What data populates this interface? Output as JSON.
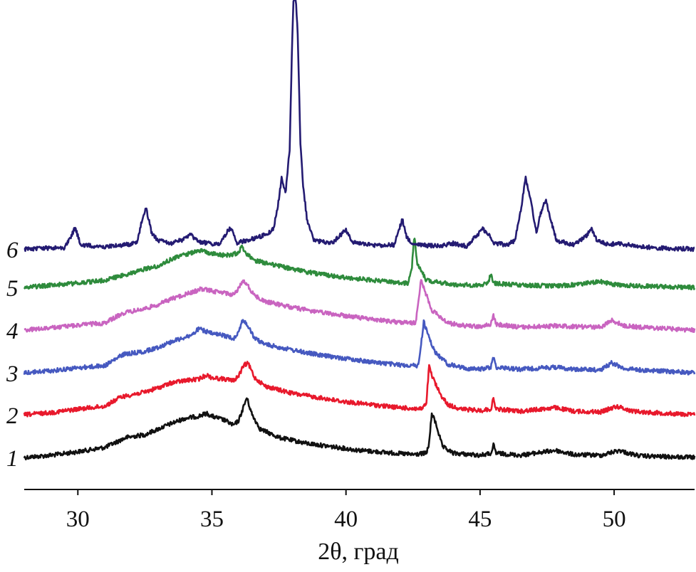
{
  "chart_data": {
    "type": "line",
    "title": "",
    "xlabel": "2θ, град",
    "ylabel": "",
    "xlim": [
      28,
      53
    ],
    "xticks": [
      30,
      35,
      40,
      45,
      50
    ],
    "xtick_labels": [
      "30",
      "35",
      "40",
      "45",
      "50"
    ],
    "grid": false,
    "series": [
      {
        "label": "1",
        "color": "#111111",
        "baseline": 2,
        "points": [
          [
            28,
            0
          ],
          [
            29,
            3
          ],
          [
            30,
            8
          ],
          [
            31,
            14
          ],
          [
            31.8,
            28
          ],
          [
            32.5,
            32
          ],
          [
            33,
            40
          ],
          [
            33.5,
            48
          ],
          [
            34,
            55
          ],
          [
            34.5,
            58
          ],
          [
            34.8,
            62
          ],
          [
            35,
            58
          ],
          [
            35.5,
            52
          ],
          [
            35.8,
            45
          ],
          [
            36,
            52
          ],
          [
            36.15,
            68
          ],
          [
            36.3,
            84
          ],
          [
            36.5,
            60
          ],
          [
            36.8,
            40
          ],
          [
            37.5,
            28
          ],
          [
            38.5,
            20
          ],
          [
            39.5,
            15
          ],
          [
            40.5,
            10
          ],
          [
            41.5,
            7
          ],
          [
            42.5,
            4
          ],
          [
            43,
            6
          ],
          [
            43.1,
            20
          ],
          [
            43.2,
            62
          ],
          [
            43.35,
            48
          ],
          [
            43.6,
            15
          ],
          [
            44,
            6
          ],
          [
            45,
            3
          ],
          [
            45.45,
            6
          ],
          [
            45.5,
            18
          ],
          [
            45.6,
            6
          ],
          [
            46.5,
            3
          ],
          [
            47.8,
            10
          ],
          [
            48.5,
            4
          ],
          [
            49.5,
            3
          ],
          [
            50.2,
            10
          ],
          [
            50.5,
            6
          ],
          [
            51,
            2
          ],
          [
            52,
            1
          ],
          [
            53,
            0
          ]
        ]
      },
      {
        "label": "2",
        "color": "#e8192c",
        "baseline": 2,
        "points": [
          [
            28,
            0
          ],
          [
            29,
            3
          ],
          [
            30,
            8
          ],
          [
            31,
            12
          ],
          [
            31.6,
            25
          ],
          [
            32.5,
            32
          ],
          [
            33,
            38
          ],
          [
            33.5,
            45
          ],
          [
            34,
            48
          ],
          [
            34.5,
            50
          ],
          [
            34.8,
            56
          ],
          [
            35,
            52
          ],
          [
            35.5,
            50
          ],
          [
            35.8,
            48
          ],
          [
            36,
            55
          ],
          [
            36.2,
            70
          ],
          [
            36.35,
            72
          ],
          [
            36.6,
            52
          ],
          [
            37,
            40
          ],
          [
            38,
            30
          ],
          [
            39,
            24
          ],
          [
            40,
            18
          ],
          [
            41,
            14
          ],
          [
            42,
            10
          ],
          [
            42.8,
            8
          ],
          [
            43,
            15
          ],
          [
            43.05,
            45
          ],
          [
            43.1,
            68
          ],
          [
            43.2,
            55
          ],
          [
            43.5,
            30
          ],
          [
            43.8,
            14
          ],
          [
            44.3,
            8
          ],
          [
            45,
            6
          ],
          [
            45.4,
            8
          ],
          [
            45.5,
            22
          ],
          [
            45.6,
            8
          ],
          [
            46.5,
            5
          ],
          [
            47.8,
            10
          ],
          [
            48.5,
            5
          ],
          [
            49.5,
            4
          ],
          [
            50.1,
            12
          ],
          [
            50.6,
            6
          ],
          [
            51,
            4
          ],
          [
            52,
            2
          ],
          [
            53,
            0
          ]
        ]
      },
      {
        "label": "3",
        "color": "#4659c0",
        "baseline": 2,
        "points": [
          [
            28,
            0
          ],
          [
            29,
            3
          ],
          [
            30,
            7
          ],
          [
            31,
            10
          ],
          [
            31.7,
            26
          ],
          [
            32.5,
            30
          ],
          [
            33,
            36
          ],
          [
            33.5,
            44
          ],
          [
            34,
            50
          ],
          [
            34.3,
            54
          ],
          [
            34.5,
            62
          ],
          [
            35,
            55
          ],
          [
            35.5,
            52
          ],
          [
            35.8,
            48
          ],
          [
            36,
            58
          ],
          [
            36.15,
            75
          ],
          [
            36.35,
            65
          ],
          [
            36.6,
            48
          ],
          [
            37,
            40
          ],
          [
            38,
            32
          ],
          [
            39,
            25
          ],
          [
            40,
            20
          ],
          [
            41,
            15
          ],
          [
            42,
            11
          ],
          [
            42.7,
            10
          ],
          [
            42.8,
            40
          ],
          [
            42.9,
            72
          ],
          [
            43,
            60
          ],
          [
            43.3,
            30
          ],
          [
            43.8,
            12
          ],
          [
            44.5,
            6
          ],
          [
            45,
            5
          ],
          [
            45.4,
            8
          ],
          [
            45.5,
            22
          ],
          [
            45.6,
            8
          ],
          [
            46.5,
            5
          ],
          [
            47.8,
            8
          ],
          [
            48.5,
            5
          ],
          [
            49.5,
            4
          ],
          [
            49.9,
            14
          ],
          [
            50.4,
            6
          ],
          [
            51,
            4
          ],
          [
            52,
            2
          ],
          [
            53,
            0
          ]
        ]
      },
      {
        "label": "4",
        "color": "#c964c0",
        "baseline": 2,
        "points": [
          [
            28,
            0
          ],
          [
            29,
            3
          ],
          [
            30,
            7
          ],
          [
            31,
            10
          ],
          [
            31.7,
            24
          ],
          [
            32.5,
            30
          ],
          [
            33,
            36
          ],
          [
            33.5,
            44
          ],
          [
            34,
            50
          ],
          [
            34.4,
            55
          ],
          [
            34.6,
            58
          ],
          [
            35,
            55
          ],
          [
            35.5,
            52
          ],
          [
            35.8,
            50
          ],
          [
            36,
            58
          ],
          [
            36.15,
            70
          ],
          [
            36.35,
            62
          ],
          [
            36.6,
            48
          ],
          [
            37,
            40
          ],
          [
            38,
            32
          ],
          [
            39,
            25
          ],
          [
            40,
            20
          ],
          [
            41,
            15
          ],
          [
            42,
            11
          ],
          [
            42.6,
            10
          ],
          [
            42.7,
            40
          ],
          [
            42.8,
            72
          ],
          [
            42.9,
            60
          ],
          [
            43.2,
            28
          ],
          [
            43.8,
            10
          ],
          [
            44.5,
            6
          ],
          [
            45,
            5
          ],
          [
            45.4,
            8
          ],
          [
            45.5,
            20
          ],
          [
            45.6,
            8
          ],
          [
            46.5,
            4
          ],
          [
            47.8,
            6
          ],
          [
            48.5,
            5
          ],
          [
            49.5,
            4
          ],
          [
            49.9,
            14
          ],
          [
            50.4,
            6
          ],
          [
            51,
            4
          ],
          [
            52,
            2
          ],
          [
            53,
            0
          ]
        ]
      },
      {
        "label": "5",
        "color": "#2e8b3c",
        "baseline": 2,
        "points": [
          [
            28,
            0
          ],
          [
            29,
            3
          ],
          [
            30,
            6
          ],
          [
            31,
            10
          ],
          [
            32,
            20
          ],
          [
            32.5,
            26
          ],
          [
            33,
            30
          ],
          [
            33.5,
            40
          ],
          [
            34,
            46
          ],
          [
            34.5,
            52
          ],
          [
            35,
            48
          ],
          [
            35.5,
            45
          ],
          [
            36,
            48
          ],
          [
            36.1,
            60
          ],
          [
            36.2,
            50
          ],
          [
            36.6,
            38
          ],
          [
            37.5,
            30
          ],
          [
            38.5,
            22
          ],
          [
            39.5,
            16
          ],
          [
            40.5,
            12
          ],
          [
            41.5,
            8
          ],
          [
            42.3,
            6
          ],
          [
            42.45,
            25
          ],
          [
            42.55,
            75
          ],
          [
            42.65,
            35
          ],
          [
            43,
            10
          ],
          [
            44,
            4
          ],
          [
            45,
            3
          ],
          [
            45.3,
            6
          ],
          [
            45.4,
            20
          ],
          [
            45.5,
            6
          ],
          [
            46.5,
            3
          ],
          [
            48,
            2
          ],
          [
            49.5,
            8
          ],
          [
            50,
            4
          ],
          [
            51,
            2
          ],
          [
            52,
            1
          ],
          [
            53,
            0
          ]
        ]
      },
      {
        "label": "6",
        "color": "#241b72",
        "baseline": 2,
        "points": [
          [
            28,
            0
          ],
          [
            29.5,
            2
          ],
          [
            29.8,
            22
          ],
          [
            29.9,
            30
          ],
          [
            30.1,
            6
          ],
          [
            31,
            3
          ],
          [
            32.2,
            8
          ],
          [
            32.4,
            42
          ],
          [
            32.55,
            58
          ],
          [
            32.75,
            22
          ],
          [
            33,
            12
          ],
          [
            33.5,
            8
          ],
          [
            34,
            14
          ],
          [
            34.2,
            20
          ],
          [
            34.5,
            10
          ],
          [
            35.3,
            6
          ],
          [
            35.6,
            26
          ],
          [
            35.75,
            30
          ],
          [
            35.9,
            8
          ],
          [
            36.5,
            14
          ],
          [
            37,
            20
          ],
          [
            37.3,
            28
          ],
          [
            37.5,
            70
          ],
          [
            37.6,
            100
          ],
          [
            37.75,
            80
          ],
          [
            37.9,
            140
          ],
          [
            38,
            300
          ],
          [
            38.05,
            360
          ],
          [
            38.12,
            360
          ],
          [
            38.2,
            300
          ],
          [
            38.3,
            150
          ],
          [
            38.4,
            90
          ],
          [
            38.55,
            40
          ],
          [
            38.8,
            12
          ],
          [
            39.5,
            8
          ],
          [
            40,
            28
          ],
          [
            40.2,
            10
          ],
          [
            41,
            5
          ],
          [
            41.8,
            6
          ],
          [
            42.1,
            42
          ],
          [
            42.25,
            18
          ],
          [
            42.5,
            6
          ],
          [
            43.5,
            4
          ],
          [
            44,
            8
          ],
          [
            44.5,
            4
          ],
          [
            45.1,
            28
          ],
          [
            45.3,
            22
          ],
          [
            45.5,
            8
          ],
          [
            46,
            6
          ],
          [
            46.3,
            12
          ],
          [
            46.5,
            50
          ],
          [
            46.7,
            100
          ],
          [
            46.9,
            65
          ],
          [
            47.1,
            24
          ],
          [
            47.3,
            55
          ],
          [
            47.45,
            70
          ],
          [
            47.6,
            45
          ],
          [
            47.85,
            12
          ],
          [
            48.5,
            6
          ],
          [
            49,
            20
          ],
          [
            49.15,
            30
          ],
          [
            49.35,
            12
          ],
          [
            49.8,
            6
          ],
          [
            50.1,
            8
          ],
          [
            51,
            3
          ],
          [
            52,
            1
          ],
          [
            53,
            0
          ]
        ]
      }
    ]
  }
}
